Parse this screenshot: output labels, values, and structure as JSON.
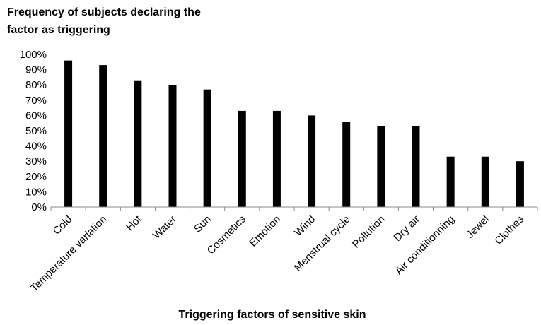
{
  "chart_data": {
    "type": "bar",
    "ylabel_lines": [
      "Frequency of subjects declaring the",
      "factor as triggering"
    ],
    "xlabel": "Triggering factors of sensitive skin",
    "categories": [
      "Cold",
      "Temperature variation",
      "Hot",
      "Water",
      "Sun",
      "Cosmetics",
      "Emotion",
      "Wind",
      "Menstrual cycle",
      "Pollution",
      "Dry air",
      "Air conditionning",
      "Jewel",
      "Clothes"
    ],
    "values": [
      96,
      93,
      83,
      80,
      77,
      63,
      63,
      60,
      56,
      53,
      53,
      33,
      33,
      30
    ],
    "value_unit": "%",
    "ylim": [
      0,
      100
    ],
    "yticks": [
      "0%",
      "10%",
      "20%",
      "30%",
      "40%",
      "50%",
      "60%",
      "70%",
      "80%",
      "90%",
      "100%"
    ],
    "grid": false,
    "bar_color": "#000000"
  }
}
